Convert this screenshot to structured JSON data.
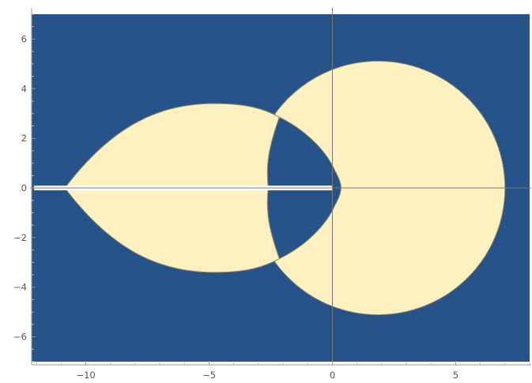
{
  "chart_data": {
    "type": "area",
    "title": "",
    "xlabel": "",
    "ylabel": "",
    "xlim": [
      -12.2,
      8.0
    ],
    "ylim": [
      -7.0,
      7.0
    ],
    "x_ticks": [
      -10,
      -5,
      0,
      5
    ],
    "x_tick_labels": [
      "−10",
      "−5",
      "0",
      "5"
    ],
    "y_ticks": [
      -6,
      -4,
      -2,
      0,
      2,
      4,
      6
    ],
    "y_tick_labels": [
      "−6",
      "−4",
      "−2",
      "0",
      "2",
      "4",
      "6"
    ],
    "grid": false,
    "axes_origin": [
      0,
      0
    ],
    "regions": [
      {
        "shape": "right-circle",
        "center": [
          1.85,
          0.0
        ],
        "radius": 5.15,
        "fill": "#fff1bf"
      },
      {
        "shape": "left-lens",
        "left_tip": [
          -10.85,
          0.0
        ],
        "top_point": [
          -4.8,
          3.4
        ],
        "right_corner": [
          -2.15,
          2.85
        ],
        "fill": "#fff1bf"
      },
      {
        "shape": "inner-region",
        "points_upper": [
          [
            -2.15,
            2.85
          ],
          [
            -2.55,
            1.6
          ],
          [
            -2.6,
            0.0
          ]
        ],
        "nose": [
          0.35,
          0.0
        ],
        "fill": "#26548a"
      }
    ],
    "branch_cut": {
      "x": [
        -12.1,
        0.0
      ],
      "y": 0.0,
      "fill": "#ffffff"
    },
    "colors": {
      "background": "#26548a",
      "region": "#fff1bf",
      "edge": "#8a8a6a",
      "axis": "#777777"
    }
  }
}
